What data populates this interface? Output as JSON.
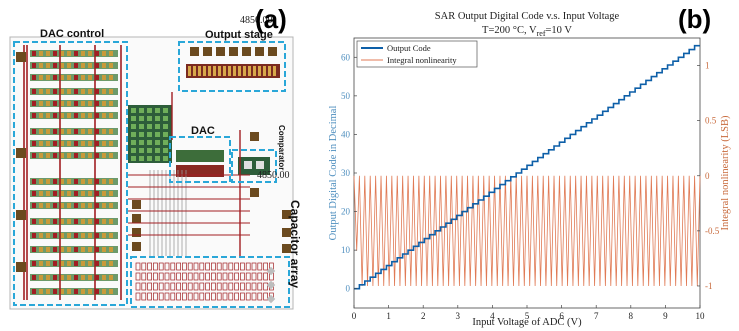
{
  "panel_a": {
    "label": "(a)",
    "dimension_top": "4850.00",
    "dimension_right": "4850.00",
    "regions": {
      "dac_control": "DAC control",
      "output_stage": "Output stage",
      "dac": "DAC",
      "comparator": "Comparator",
      "capacitor_array": "Capacitor array"
    },
    "colors": {
      "metal": "#a11e22",
      "box": "#2aa7d8",
      "pad": "#6b4a1f"
    }
  },
  "panel_b": {
    "label": "(b)"
  },
  "chart_data": {
    "type": "line",
    "title": "SAR Output Digital Code v.s. Input Voltage",
    "subtitle_prefix": "T=200 °C, V",
    "subtitle_sub": "ref",
    "subtitle_suffix": "=10 V",
    "xlabel": "Input Voltage of ADC (V)",
    "ylabel": "Output Digital Code in Decimal",
    "y2label": "Integral nonlinearity (LSB)",
    "xlim": [
      0,
      10
    ],
    "ylim": [
      -5,
      65
    ],
    "y2lim": [
      -1.2,
      1.25
    ],
    "xticks": [
      "0",
      "1",
      "2",
      "3",
      "4",
      "5",
      "6",
      "7",
      "8",
      "9",
      "10"
    ],
    "yticks": [
      "0",
      "10",
      "20",
      "30",
      "40",
      "50",
      "60"
    ],
    "y2ticks": [
      "-1",
      "-0.5",
      "0",
      "0.5",
      "1"
    ],
    "grid": false,
    "legend_position": "top-left",
    "series": [
      {
        "name": "Output Code",
        "axis": "left",
        "color": "#0d5fa8",
        "codes": 64,
        "step_volts": 0.15625,
        "range": [
          0,
          63
        ]
      },
      {
        "name": "Integral nonlinearity",
        "axis": "right",
        "color": "#e07a55",
        "periods": 64,
        "high": 0.0,
        "low": -1.0,
        "first_low": -0.68
      }
    ],
    "colors": {
      "left_axis": "#4f8fbf",
      "right_axis": "#c86a3c"
    }
  }
}
